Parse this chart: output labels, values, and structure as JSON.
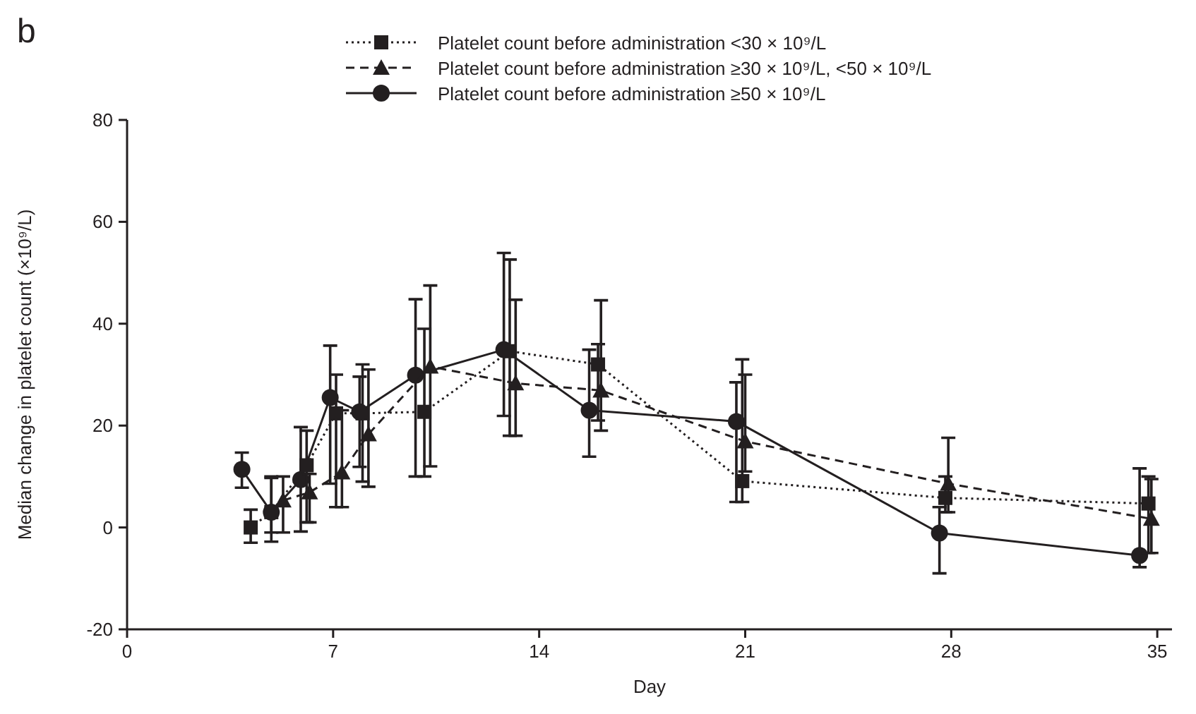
{
  "chart_data": {
    "type": "line",
    "xlabel": "Day",
    "ylabel": "Median change in platelet count (×10⁹/L)",
    "annotations": [
      "b"
    ],
    "xlim": [
      0,
      35.5
    ],
    "xticks": [
      0,
      7,
      14,
      21,
      28,
      35
    ],
    "ylim": [
      -20,
      80
    ],
    "yticks": [
      -20,
      0,
      20,
      40,
      60,
      80
    ],
    "grid": false,
    "legend": "top",
    "series": [
      {
        "name": "Platelet count before administration <30 × 10⁹/L",
        "color": "#231f20",
        "marker": "square",
        "line_style": "dotted",
        "x": [
          4.2,
          4.9,
          6.1,
          7.1,
          8.0,
          10.1,
          13.0,
          16.0,
          20.9,
          27.8,
          34.7
        ],
        "values": [
          0,
          3,
          12.2,
          22.4,
          22.4,
          22.7,
          34.6,
          32,
          9.1,
          5.8,
          4.7
        ],
        "errors": [
          [
            -3,
            3.5
          ],
          [
            -1,
            10
          ],
          [
            1,
            19
          ],
          [
            4,
            30
          ],
          [
            9,
            32
          ],
          [
            10,
            39
          ],
          [
            18,
            52.6
          ],
          [
            21,
            36
          ],
          [
            5,
            33
          ],
          [
            3,
            10
          ],
          [
            -5,
            10
          ]
        ]
      },
      {
        "name": "Platelet count before administration ≥30 × 10⁹/L, <50 × 10⁹/L",
        "color": "#231f20",
        "marker": "triangle",
        "line_style": "dashed",
        "x": [
          5.3,
          6.2,
          7.3,
          8.2,
          10.3,
          13.2,
          16.1,
          21.0,
          27.9,
          34.8
        ],
        "values": [
          5.3,
          6.9,
          10.8,
          18.3,
          31.6,
          28.3,
          26.9,
          16.9,
          8.6,
          1.7
        ],
        "errors": [
          [
            -1,
            10
          ],
          [
            1,
            10.5
          ],
          [
            4,
            23
          ],
          [
            8,
            31
          ],
          [
            12,
            47.5
          ],
          [
            18,
            44.7
          ],
          [
            19,
            44.6
          ],
          [
            11,
            30
          ],
          [
            3,
            17.6
          ],
          [
            -5,
            9.5
          ]
        ]
      },
      {
        "name": "Platelet count before administration ≥50 × 10⁹/L",
        "color": "#231f20",
        "marker": "circle",
        "line_style": "solid",
        "x": [
          3.9,
          4.9,
          5.9,
          6.9,
          7.9,
          9.8,
          12.8,
          15.7,
          20.7,
          27.6,
          34.4
        ],
        "values": [
          11.4,
          3,
          9.4,
          25.5,
          22.7,
          29.9,
          34.9,
          23,
          20.8,
          -1.1,
          -5.5
        ],
        "errors": [
          [
            7.8,
            14.7
          ],
          [
            -2.8,
            9.7
          ],
          [
            -0.8,
            19.7
          ],
          [
            8.6,
            35.7
          ],
          [
            11.9,
            29.6
          ],
          [
            10,
            44.8
          ],
          [
            21.9,
            53.9
          ],
          [
            13.9,
            34.9
          ],
          [
            5,
            28.5
          ],
          [
            -9,
            4
          ],
          [
            -7.8,
            11.6
          ]
        ]
      }
    ]
  }
}
